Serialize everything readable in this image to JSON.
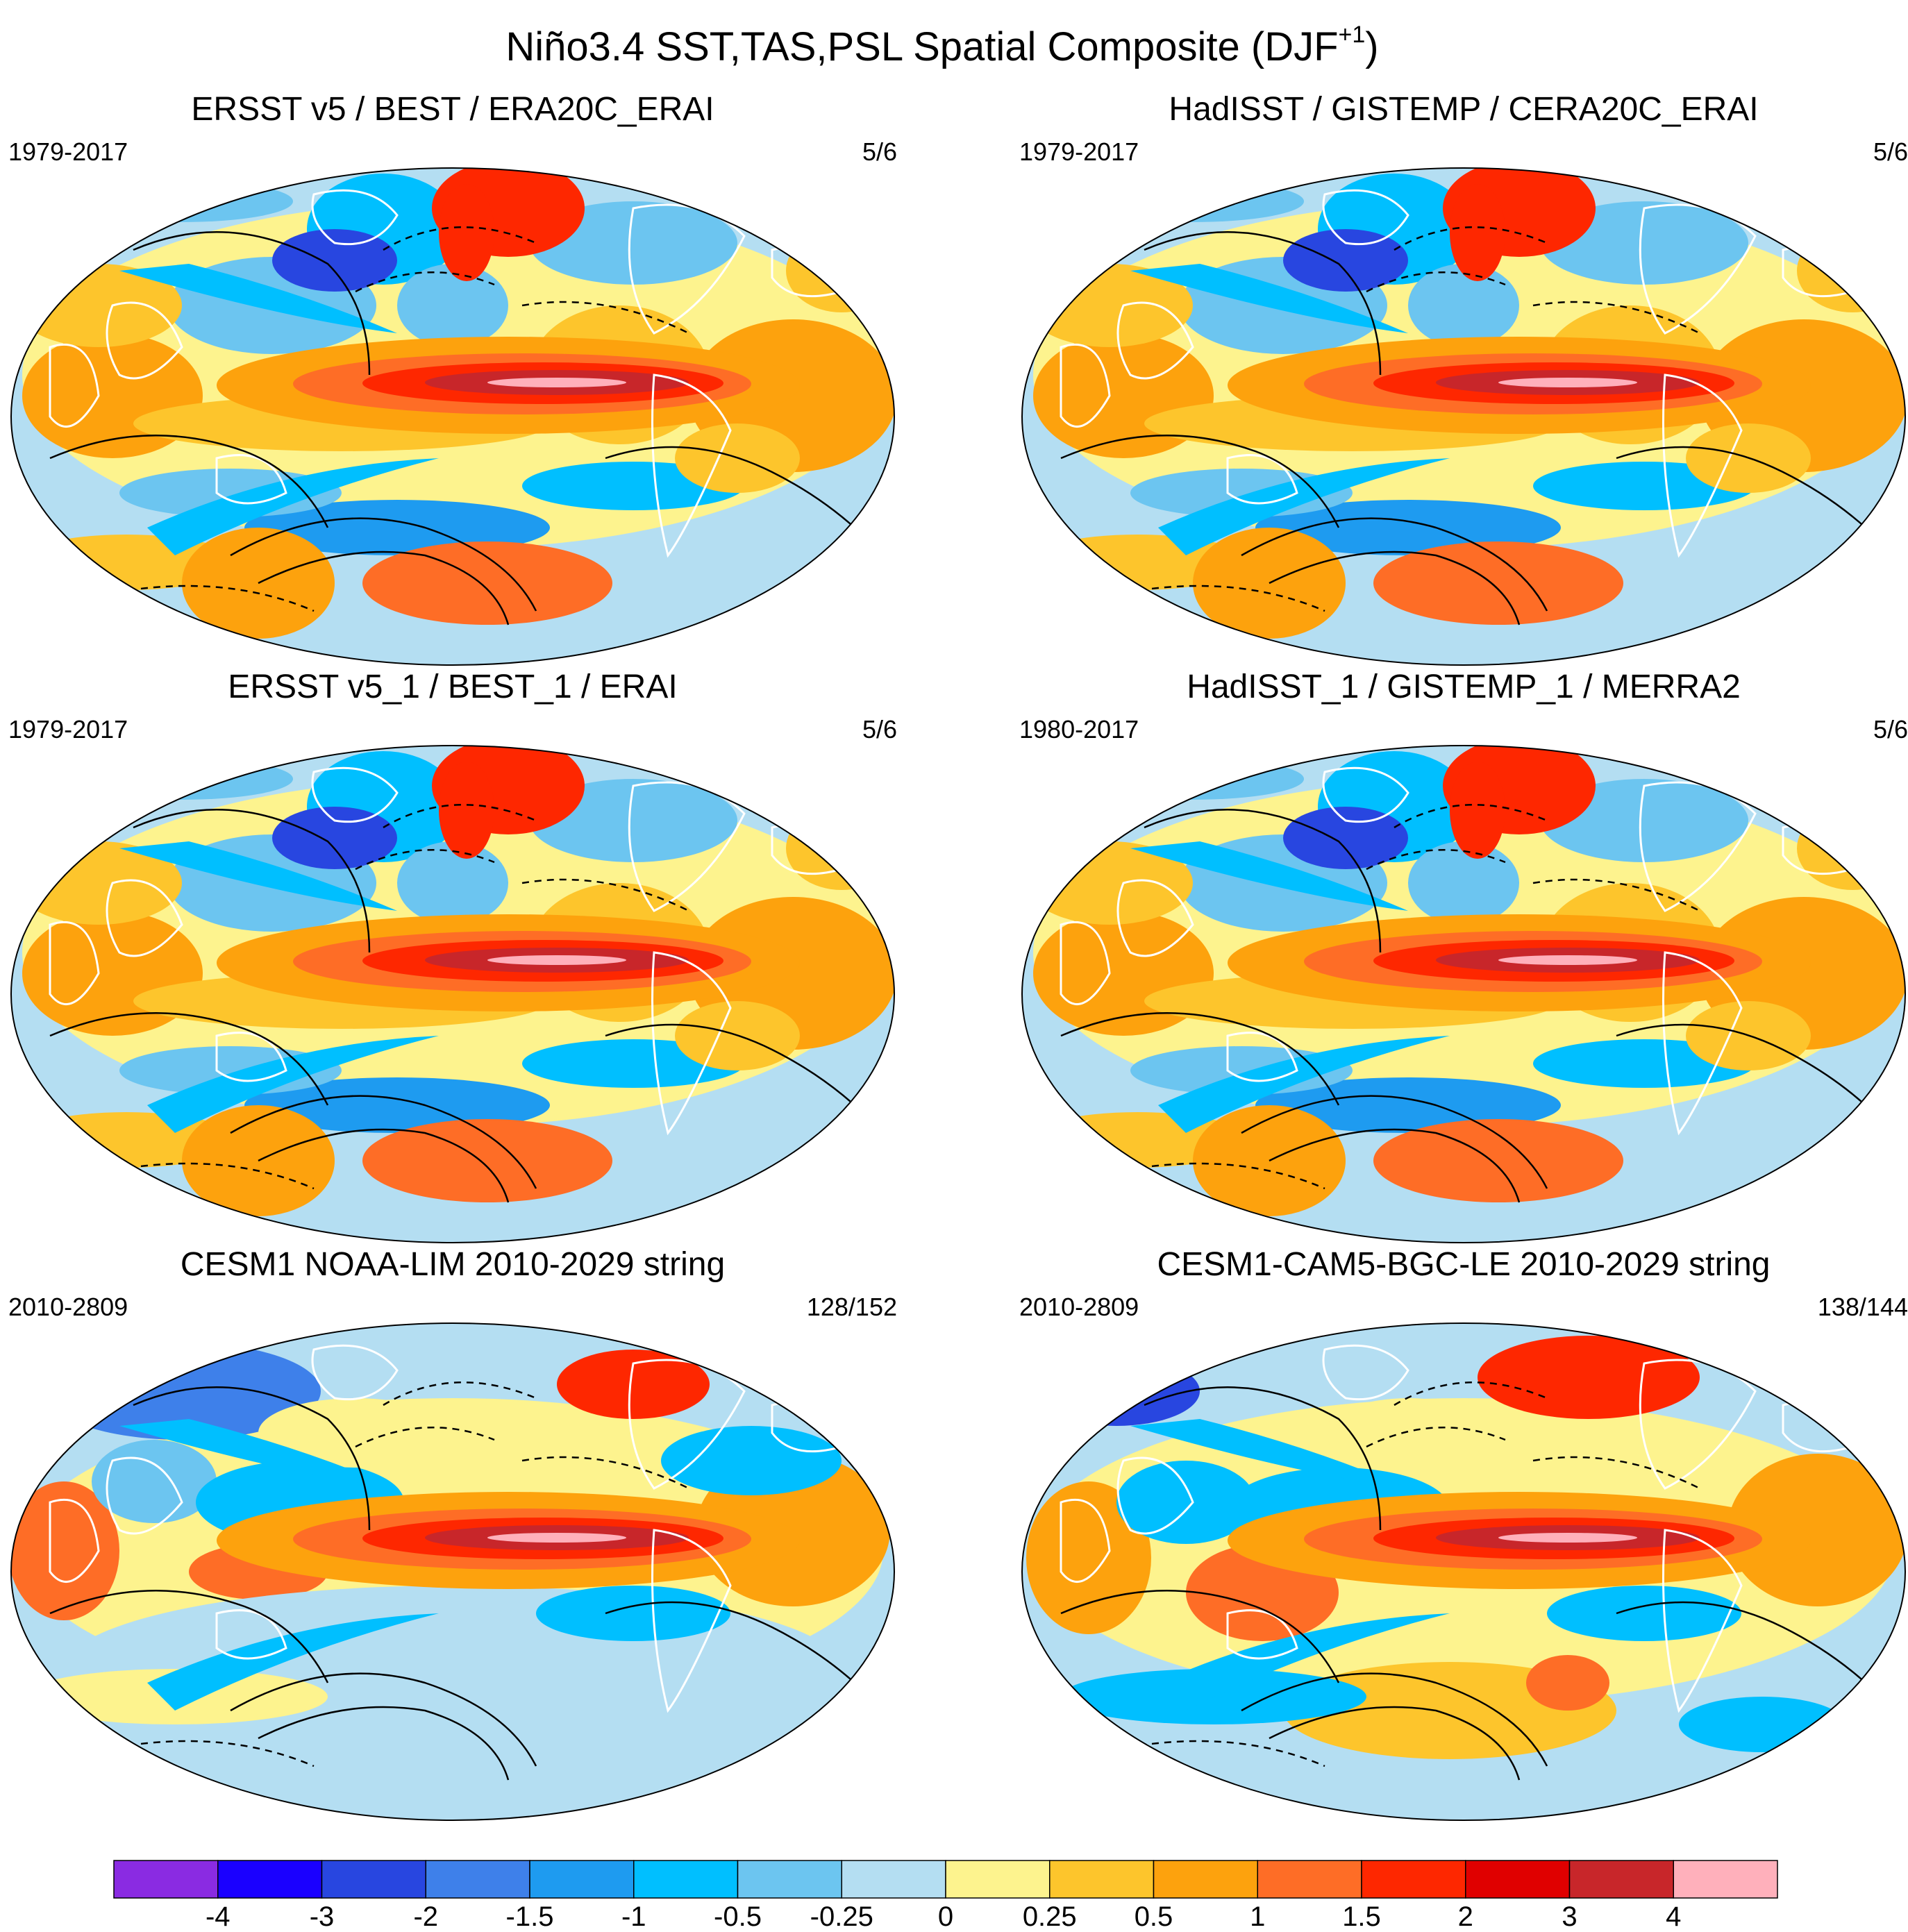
{
  "title": "Niño3.4 SST,TAS,PSL Spatial Composite (DJF",
  "title_sup": "+1",
  "title_tail": ")",
  "panels": [
    {
      "title": "ERSST v5 / BEST / ERA20C_ERAI",
      "years": "1979-2017",
      "count": "5/6"
    },
    {
      "title": "HadISST / GISTEMP / CERA20C_ERAI",
      "years": "1979-2017",
      "count": "5/6"
    },
    {
      "title": "ERSST v5_1 / BEST_1 / ERAI",
      "years": "1979-2017",
      "count": "5/6"
    },
    {
      "title": "HadISST_1 / GISTEMP_1 / MERRA2",
      "years": "1980-2017",
      "count": "5/6"
    },
    {
      "title": "CESM1 NOAA-LIM 2010-2029 string",
      "years": "2010-2809",
      "count": "128/152"
    },
    {
      "title": "CESM1-CAM5-BGC-LE 2010-2029 string",
      "years": "2010-2809",
      "count": "138/144"
    }
  ],
  "chart_data": {
    "type": "heatmap",
    "projection": "robinson (global, Pacific-centered)",
    "colorbar": {
      "levels": [
        "-4",
        "-3",
        "-2",
        "-1.5",
        "-1",
        "-0.5",
        "-0.25",
        "0",
        "0.25",
        "0.5",
        "1",
        "1.5",
        "2",
        "3",
        "4"
      ],
      "colors": [
        "#8a2be2",
        "#1a00ff",
        "#2846e0",
        "#3e80ea",
        "#1e9bf0",
        "#00bfff",
        "#6cc5f0",
        "#b4def2",
        "#fdf38e",
        "#fdc52c",
        "#fda20d",
        "#fe6d26",
        "#fe2700",
        "#e00000",
        "#c8262a",
        "#ffb0bb"
      ]
    },
    "colors": {
      "ocean_land_mask_line": "#ffffff",
      "coast_line": "#888888",
      "contour": "#000000"
    }
  }
}
